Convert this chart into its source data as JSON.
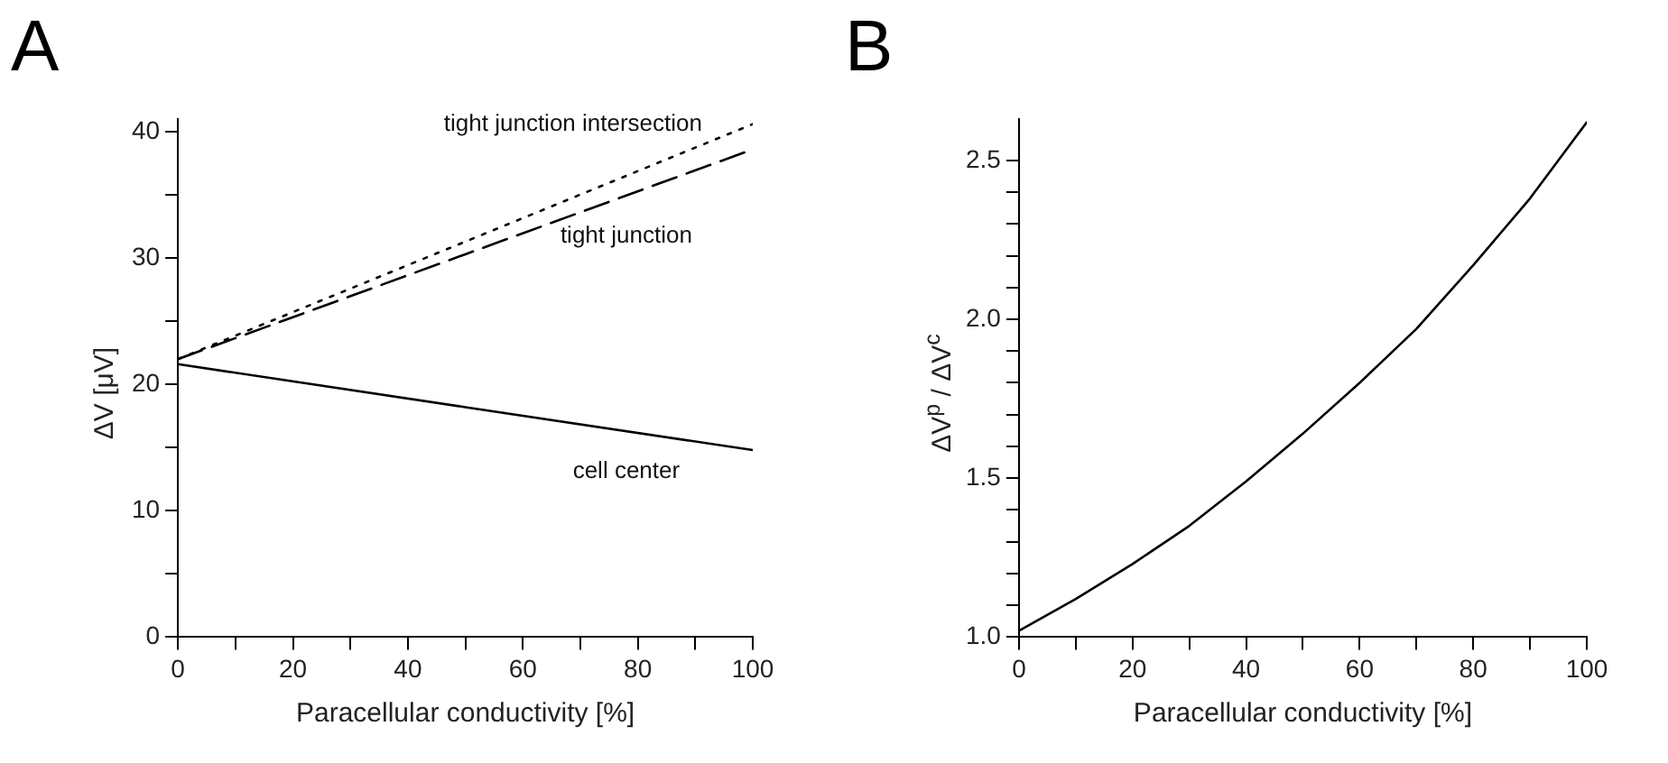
{
  "chart_data": [
    {
      "type": "line",
      "title": "A",
      "xlabel": "Paracellular conductivity [%]",
      "ylabel": "ΔV [μV]",
      "x": [
        0,
        50,
        100
      ],
      "series": [
        {
          "name": "tight junction intersection",
          "color": "#000000",
          "line_style": "dotted",
          "values": [
            22.0,
            31.3,
            40.6
          ]
        },
        {
          "name": "tight junction",
          "color": "#000000",
          "line_style": "dashed",
          "values": [
            22.0,
            30.3,
            38.6
          ]
        },
        {
          "name": "cell center",
          "color": "#000000",
          "line_style": "solid",
          "values": [
            21.6,
            18.2,
            14.8
          ]
        }
      ],
      "xlim": [
        0,
        100
      ],
      "xticks": [
        0,
        {
          "value": 10,
          "label": null
        },
        20,
        {
          "value": 30,
          "label": null
        },
        40,
        {
          "value": 50,
          "label": null
        },
        60,
        {
          "value": 70,
          "label": null
        },
        80,
        {
          "value": 90,
          "label": null
        },
        100
      ],
      "ylim": [
        0,
        41
      ],
      "yticks": [
        0,
        {
          "value": 5,
          "label": null
        },
        10,
        {
          "value": 15,
          "label": null
        },
        20,
        {
          "value": 25,
          "label": null
        },
        30,
        {
          "value": 35,
          "label": null
        },
        40
      ],
      "grid": false,
      "legend": false,
      "marker": "none"
    },
    {
      "type": "line",
      "title": "B",
      "xlabel": "Paracellular conductivity [%]",
      "ylabel": "ΔV$^{p}$ / ΔV$^{c}$",
      "x": [
        0,
        10,
        20,
        30,
        40,
        50,
        60,
        70,
        80,
        90,
        100
      ],
      "series": [
        {
          "color": "#000000",
          "line_style": "solid",
          "values": [
            1.02,
            1.12,
            1.23,
            1.35,
            1.49,
            1.64,
            1.8,
            1.97,
            2.17,
            2.38,
            2.62
          ]
        }
      ],
      "xlim": [
        0,
        100
      ],
      "xticks": [
        0,
        {
          "value": 10,
          "label": null
        },
        20,
        {
          "value": 30,
          "label": null
        },
        40,
        {
          "value": 50,
          "label": null
        },
        60,
        {
          "value": 70,
          "label": null
        },
        80,
        {
          "value": 90,
          "label": null
        },
        100
      ],
      "ylim": [
        1.0,
        2.63
      ],
      "yticks": [
        {
          "value": 1.0,
          "label": "1.0"
        },
        {
          "value": 1.1,
          "label": null
        },
        {
          "value": 1.2,
          "label": null
        },
        {
          "value": 1.3,
          "label": null
        },
        {
          "value": 1.4,
          "label": null
        },
        1.5,
        {
          "value": 1.6,
          "label": null
        },
        {
          "value": 1.7,
          "label": null
        },
        {
          "value": 1.8,
          "label": null
        },
        {
          "value": 1.9,
          "label": null
        },
        {
          "value": 2.0,
          "label": "2.0"
        },
        {
          "value": 2.1,
          "label": null
        },
        {
          "value": 2.2,
          "label": null
        },
        {
          "value": 2.3,
          "label": null
        },
        {
          "value": 2.4,
          "label": null
        },
        2.5
      ],
      "grid": false,
      "legend": false,
      "marker": "none"
    }
  ]
}
